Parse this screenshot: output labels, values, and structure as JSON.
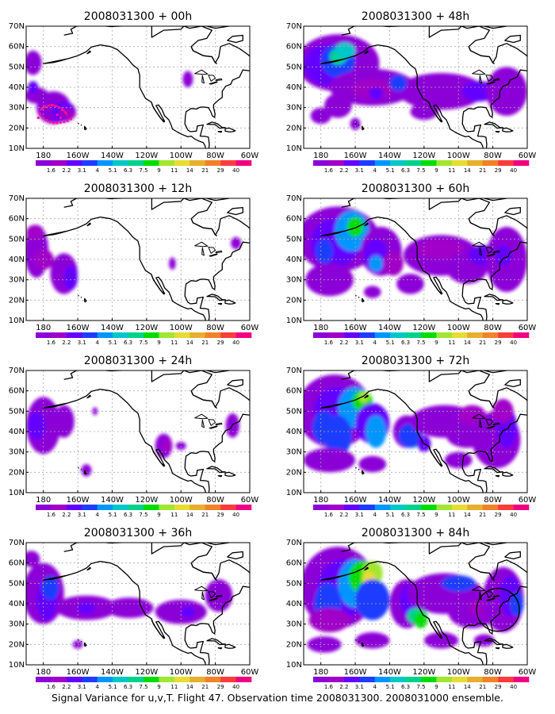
{
  "caption": "Signal Variance for u,v,T. Flight 47. Observation time 2008031300. 2008031000 ensemble.",
  "lat_labels": [
    "70N",
    "60N",
    "50N",
    "40N",
    "30N",
    "20N",
    "10N"
  ],
  "lon_labels": [
    "180",
    "160W",
    "140W",
    "120W",
    "100W",
    "80W",
    "60W"
  ],
  "colorbar": {
    "labels": [
      "1.6",
      "2.2",
      "3.1",
      "4",
      "5.1",
      "6.3",
      "7.5",
      "9",
      "11",
      "14",
      "21",
      "29",
      "40"
    ],
    "colors": [
      "#8c00d8",
      "#a000c8",
      "#6400ff",
      "#1e3cff",
      "#0096ff",
      "#00c8c8",
      "#00d28c",
      "#00dc00",
      "#a0e632",
      "#e6dc32",
      "#e6af2d",
      "#f08228",
      "#fa3c3c",
      "#f00082"
    ]
  },
  "colors": {
    "land": "#000000",
    "grid": "#aaaaaa",
    "marker": "#ff1493",
    "circle": "#000000"
  },
  "panels": [
    {
      "title": "2008031300 + 00h",
      "level": 0
    },
    {
      "title": "2008031300 + 48h",
      "level": 4
    },
    {
      "title": "2008031300 + 12h",
      "level": 1
    },
    {
      "title": "2008031300 + 60h",
      "level": 5
    },
    {
      "title": "2008031300 + 24h",
      "level": 2
    },
    {
      "title": "2008031300 + 72h",
      "level": 6
    },
    {
      "title": "2008031300 + 36h",
      "level": 3
    },
    {
      "title": "2008031300 + 84h",
      "level": 7
    }
  ]
}
